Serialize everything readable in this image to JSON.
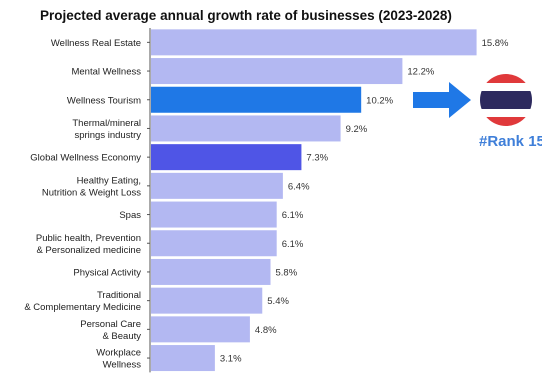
{
  "chart_data": {
    "type": "bar",
    "orientation": "horizontal",
    "title": "Projected average annual growth rate of businesses (2023-2028)",
    "categories": [
      [
        "Wellness Real Estate"
      ],
      [
        "Mental Wellness"
      ],
      [
        "Wellness Tourism"
      ],
      [
        "Thermal/mineral",
        "springs industry"
      ],
      [
        "Global Wellness Economy"
      ],
      [
        "Healthy Eating,",
        "Nutrition & Weight Loss"
      ],
      [
        "Spas"
      ],
      [
        "Public health, Prevention",
        "& Personalized medicine"
      ],
      [
        "Physical Activity"
      ],
      [
        "Traditional",
        "& Complementary Medicine"
      ],
      [
        "Personal Care",
        "& Beauty"
      ],
      [
        "Workplace",
        "Wellness"
      ]
    ],
    "values": [
      15.8,
      12.2,
      10.2,
      9.2,
      7.3,
      6.4,
      6.1,
      6.1,
      5.8,
      5.4,
      4.8,
      3.1
    ],
    "value_labels": [
      "15.8%",
      "12.2%",
      "10.2%",
      "9.2%",
      "7.3%",
      "6.4%",
      "6.1%",
      "6.1%",
      "5.8%",
      "5.4%",
      "4.8%",
      "3.1%"
    ],
    "highlight": {
      "Wellness Tourism": "#1f78e6",
      "Global Wellness Economy": "#4f55e6"
    },
    "default_color": "#b3b8f2",
    "xlim": [
      0,
      16.5
    ],
    "grid": false,
    "legend": "none"
  },
  "annotation": {
    "rank_text": "#Rank 15",
    "flag": "thailand-flag-icon",
    "arrow": "right-arrow-icon",
    "arrow_color": "#1f78e6",
    "rank_color": "#3f7fd9"
  }
}
